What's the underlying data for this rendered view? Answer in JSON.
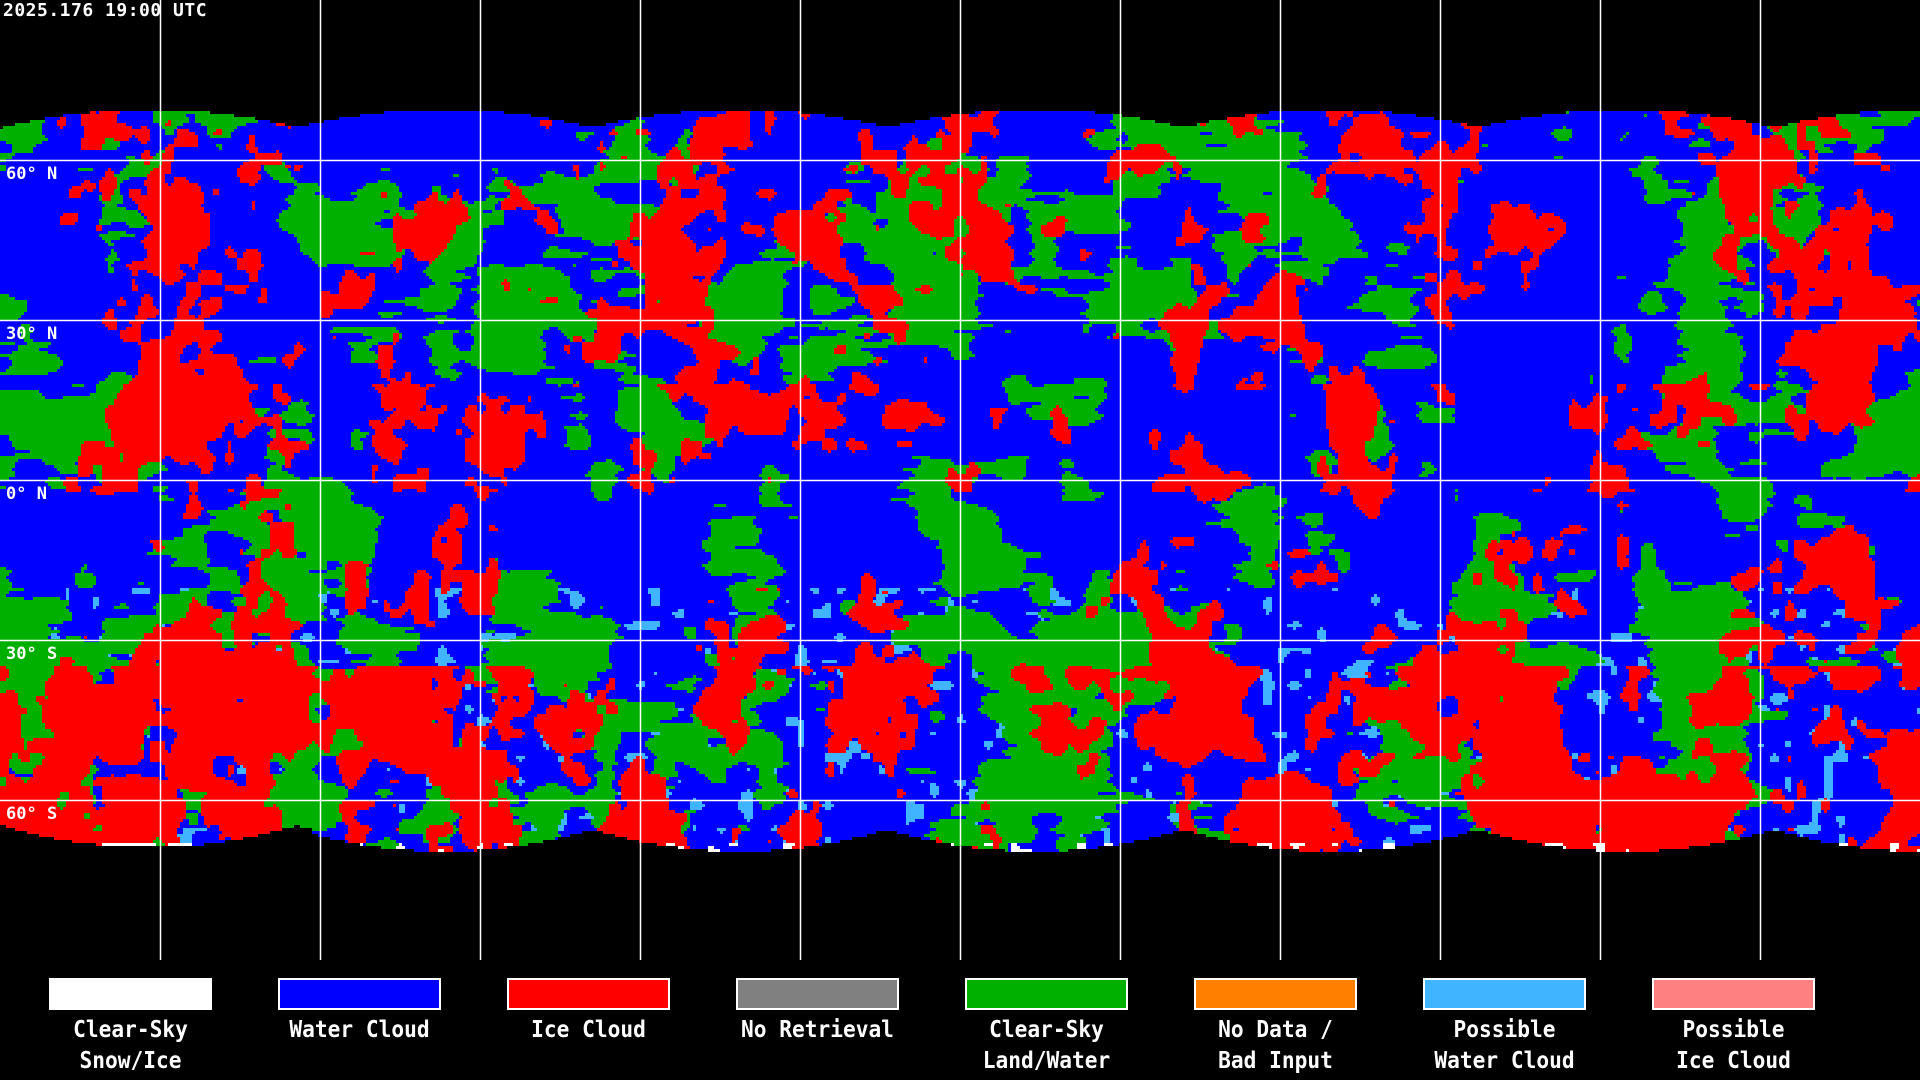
{
  "title": "2025.176 19:00 UTC",
  "map": {
    "projection": "equirectangular",
    "grid_spacing_degrees": 30,
    "latitude_labels": [
      "60° N",
      "30° N",
      "0° N",
      "30° S",
      "60° S"
    ]
  },
  "legend": [
    {
      "line1": "Clear-Sky",
      "line2": "Snow/Ice",
      "color": "#ffffff"
    },
    {
      "line1": "Water Cloud",
      "line2": "",
      "color": "#0000ff"
    },
    {
      "line1": "Ice Cloud",
      "line2": "",
      "color": "#ff0000"
    },
    {
      "line1": "No Retrieval",
      "line2": "",
      "color": "#808080"
    },
    {
      "line1": "Clear-Sky",
      "line2": "Land/Water",
      "color": "#00b000"
    },
    {
      "line1": "No Data /",
      "line2": "Bad Input",
      "color": "#ff8000"
    },
    {
      "line1": "Possible",
      "line2": "Water Cloud",
      "color": "#40b4ff"
    },
    {
      "line1": "Possible",
      "line2": "Ice Cloud",
      "color": "#ff8080"
    }
  ]
}
